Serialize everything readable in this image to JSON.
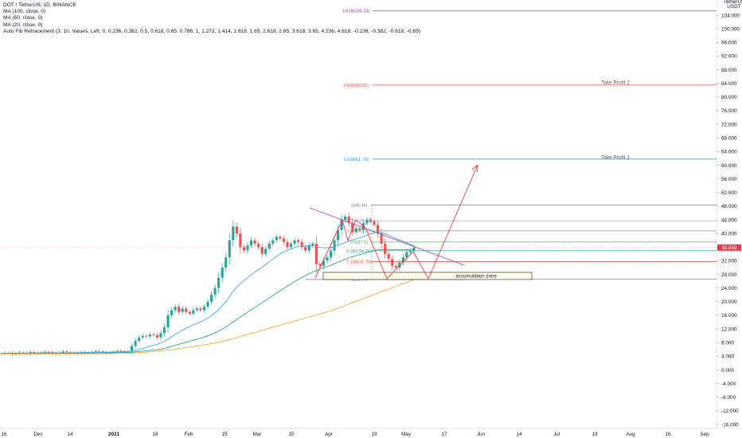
{
  "legend": {
    "symbol": "DOT / TetherUS, 1D, BINANCE",
    "ma100": "MA (100, close, 0)",
    "ma50": "MA (50, close, 0)",
    "ma20": "MA (20, close, 0)",
    "fib": "Auto Fib Retracement (3, 10, Values, Left, 0, 0.236, 0.382, 0.5, 0.618, 0.65, 0.786, 1, 1.272, 1.414, 1.618, 1.65, 2.618, 2.65, 3.618, 3.65, 4.236, 4.618, -0.236, -0.382, -0.618, -0.65)"
  },
  "axis": {
    "currency_top": "TetherUS",
    "currency": "USDT",
    "current_price": "35.859",
    "current_price_color": "#f23645"
  },
  "annotations": {
    "take_profit_2": "Take Profit 2",
    "take_profit_1": "Take Profit 1",
    "accumulation": "accumulation zone"
  },
  "colors": {
    "ma100": "#f9a825",
    "ma50": "#26a69a",
    "ma20": "#42a5f5",
    "up": "#26a69a",
    "down": "#ef5350",
    "trendline": "#ab47bc",
    "arrow": "#f23645"
  },
  "chart_data": {
    "type": "line",
    "title": "",
    "xlabel": "",
    "ylabel": "",
    "ylim": [
      -16,
      108
    ],
    "y_ticks": [
      "104.000",
      "100.000",
      "96.000",
      "92.000",
      "88.000",
      "84.000",
      "80.000",
      "76.000",
      "72.000",
      "68.000",
      "64.000",
      "60.000",
      "56.000",
      "52.000",
      "48.000",
      "44.000",
      "40.000",
      "36.000",
      "32.000",
      "28.000",
      "24.000",
      "20.000",
      "16.000",
      "12.000",
      "8.000",
      "4.000",
      "0.000",
      "-4.000",
      "-8.000",
      "-12.000",
      "-16.000"
    ],
    "x_ticks": [
      "16",
      "Dec",
      "14",
      "2021",
      "18",
      "Feb",
      "15",
      "Mar",
      "15",
      "Apr",
      "19",
      "May",
      "17",
      "Jun",
      "14",
      "Jul",
      "19",
      "Aug",
      "16",
      "Sep"
    ],
    "fib_levels": [
      {
        "label": "3.618(105.23)",
        "value": 105.23,
        "color": "#9c27b0"
      },
      {
        "label": "2.618(83.51)",
        "value": 83.51,
        "color": "#f44336"
      },
      {
        "label": "1.618(61.79)",
        "value": 61.79,
        "color": "#2196f3"
      },
      {
        "label": "1(48.36)",
        "value": 48.36,
        "color": "#787b86"
      },
      {
        "label": "0.786(43.71)",
        "value": 43.71,
        "color": "#64b5f6"
      },
      {
        "label": "0.65(40.76)",
        "value": 40.76,
        "color": "#4caf50"
      },
      {
        "label": "0.5(37.5)",
        "value": 37.5,
        "color": "#4caf50"
      },
      {
        "label": "0.382(34.94)",
        "value": 34.94,
        "color": "#26a69a"
      },
      {
        "label": "0.236(31.76)",
        "value": 31.76,
        "color": "#f44336"
      },
      {
        "label": "0(26.64)",
        "value": 26.64,
        "color": "#787b86"
      }
    ],
    "series": [
      {
        "values": [
          4.8,
          4.9,
          5.0,
          4.6,
          4.7,
          5.1,
          5.0,
          4.8,
          5.2,
          5.0,
          4.9,
          5.1,
          5.3,
          5.2,
          5.0,
          4.8,
          5.0,
          5.4,
          5.2,
          5.1,
          4.9,
          5.0,
          5.2,
          5.1,
          5.0,
          5.3,
          5.5,
          5.4,
          5.2,
          5.0,
          5.1,
          5.4,
          5.6,
          5.5,
          5.3,
          5.5,
          7.0,
          8.5,
          9.5,
          10.0,
          9.8,
          10.4,
          10.2,
          9.5,
          10.8,
          12.5,
          16.0,
          17.5,
          18.5,
          17.0,
          18.0,
          17.0,
          16.5,
          17.5,
          18.0,
          17.5,
          18.5,
          20.0,
          22.0,
          24.0,
          27.0,
          30.0,
          33.0,
          38.0,
          42.0,
          40.0,
          36.0,
          35.0,
          36.5,
          38.0,
          37.0,
          36.0,
          34.0,
          35.5,
          37.0,
          38.0,
          39.0,
          38.5,
          37.5,
          36.0,
          37.0,
          38.0,
          37.5,
          36.0,
          35.0,
          36.5,
          37.0,
          31.0,
          30.5,
          32.0,
          33.0,
          35.0,
          38.0,
          41.0,
          44.0,
          45.0,
          43.0,
          40.5,
          41.5,
          41.0,
          43.0,
          44.0,
          43.5,
          42.5,
          40.0,
          37.0,
          34.0,
          32.5,
          30.5,
          30.0,
          31.5,
          33.0,
          34.5,
          35.0,
          35.9
        ]
      },
      {
        "name": "MA (20, close, 0)",
        "values": [
          4.9,
          4.9,
          4.9,
          4.9,
          4.9,
          4.9,
          4.9,
          4.9,
          4.9,
          4.95,
          4.95,
          5.0,
          5.0,
          5.0,
          5.0,
          5.0,
          5.0,
          5.0,
          5.0,
          5.0,
          5.0,
          5.05,
          5.1,
          5.1,
          5.1,
          5.1,
          5.15,
          5.2,
          5.2,
          5.2,
          5.2,
          5.25,
          5.3,
          5.3,
          5.3,
          5.35,
          5.5,
          5.7,
          6.0,
          6.3,
          6.6,
          6.9,
          7.2,
          7.5,
          7.9,
          8.4,
          9.0,
          9.7,
          10.4,
          11.0,
          11.6,
          12.2,
          12.7,
          13.2,
          13.7,
          14.1,
          14.6,
          15.2,
          15.9,
          16.7,
          17.7,
          18.8,
          20.0,
          21.5,
          23.0,
          24.3,
          25.3,
          26.2,
          27.0,
          27.9,
          28.7,
          29.4,
          30.1,
          30.9,
          31.7,
          32.5,
          33.3,
          34.0,
          34.6,
          35.1,
          35.5,
          35.9,
          36.2,
          36.3,
          36.3,
          36.4,
          36.4,
          36.1,
          35.9,
          35.8,
          35.8,
          35.9,
          36.1,
          36.5,
          36.9,
          37.4,
          37.8,
          38.1,
          38.4,
          38.7,
          39.1,
          39.5,
          39.9,
          40.2,
          40.3,
          40.2,
          39.9,
          39.5,
          39.0,
          38.5,
          38.1,
          37.7,
          37.3,
          36.8,
          36.3
        ]
      },
      {
        "name": "MA (50, close, 0)",
        "values": [
          4.8,
          4.8,
          4.8,
          4.8,
          4.8,
          4.8,
          4.8,
          4.8,
          4.8,
          4.8,
          4.8,
          4.8,
          4.8,
          4.8,
          4.8,
          4.8,
          4.8,
          4.8,
          4.8,
          4.8,
          4.8,
          4.85,
          4.85,
          4.9,
          4.9,
          4.9,
          4.95,
          4.95,
          5.0,
          5.0,
          5.0,
          5.05,
          5.1,
          5.1,
          5.1,
          5.15,
          5.2,
          5.3,
          5.4,
          5.5,
          5.6,
          5.7,
          5.8,
          5.9,
          6.1,
          6.3,
          6.6,
          6.9,
          7.2,
          7.5,
          7.8,
          8.1,
          8.4,
          8.7,
          9.0,
          9.3,
          9.6,
          10.0,
          10.4,
          10.9,
          11.4,
          12.0,
          12.6,
          13.3,
          14.1,
          14.8,
          15.5,
          16.2,
          16.9,
          17.6,
          18.3,
          19.0,
          19.7,
          20.4,
          21.1,
          21.8,
          22.5,
          23.2,
          23.9,
          24.6,
          25.2,
          25.9,
          26.5,
          27.1,
          27.6,
          28.2,
          28.7,
          29.1,
          29.5,
          29.9,
          30.3,
          30.7,
          31.1,
          31.6,
          32.0,
          32.5,
          32.9,
          33.2,
          33.5,
          33.8,
          34.1,
          34.4,
          34.7,
          35.0,
          35.2,
          35.3,
          35.3,
          35.3,
          35.3,
          35.3,
          35.3,
          35.3,
          35.3,
          35.3,
          35.4
        ]
      },
      {
        "name": "MA (100, close, 0)",
        "values": [
          4.7,
          4.7,
          4.7,
          4.7,
          4.7,
          4.7,
          4.7,
          4.7,
          4.7,
          4.7,
          4.7,
          4.7,
          4.7,
          4.7,
          4.7,
          4.7,
          4.7,
          4.7,
          4.7,
          4.7,
          4.7,
          4.7,
          4.7,
          4.7,
          4.75,
          4.75,
          4.75,
          4.8,
          4.8,
          4.8,
          4.8,
          4.8,
          4.85,
          4.85,
          4.85,
          4.9,
          4.95,
          5.0,
          5.05,
          5.1,
          5.2,
          5.3,
          5.4,
          5.5,
          5.6,
          5.7,
          5.8,
          5.95,
          6.1,
          6.25,
          6.4,
          6.55,
          6.7,
          6.85,
          7.0,
          7.15,
          7.3,
          7.5,
          7.7,
          7.9,
          8.1,
          8.35,
          8.6,
          8.9,
          9.2,
          9.5,
          9.8,
          10.1,
          10.4,
          10.7,
          11.0,
          11.3,
          11.6,
          11.9,
          12.2,
          12.5,
          12.8,
          13.1,
          13.4,
          13.7,
          14.0,
          14.3,
          14.6,
          14.9,
          15.2,
          15.5,
          15.8,
          16.1,
          16.4,
          16.7,
          17.0,
          17.3,
          17.7,
          18.1,
          18.5,
          18.9,
          19.3,
          19.7,
          20.1,
          20.5,
          20.9,
          21.3,
          21.7,
          22.1,
          22.5,
          22.9,
          23.3,
          23.7,
          24.1,
          24.5,
          24.9,
          25.3,
          25.7,
          26.1,
          26.5
        ]
      }
    ]
  }
}
